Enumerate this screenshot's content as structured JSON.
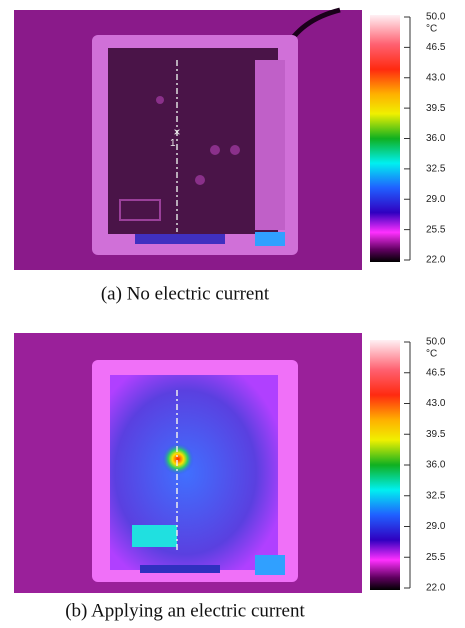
{
  "panels": [
    {
      "caption": "(a) No electric current",
      "marker_label": "1",
      "unit": "°C",
      "scale_labels": [
        "50.0",
        "46.5",
        "43.0",
        "39.5",
        "36.0",
        "32.5",
        "29.0",
        "25.5",
        "22.0"
      ]
    },
    {
      "caption": "(b) Applying an electric current",
      "unit": "°C",
      "scale_labels": [
        "50.0",
        "46.5",
        "43.0",
        "39.5",
        "36.0",
        "32.5",
        "29.0",
        "25.5",
        "22.0"
      ]
    }
  ]
}
